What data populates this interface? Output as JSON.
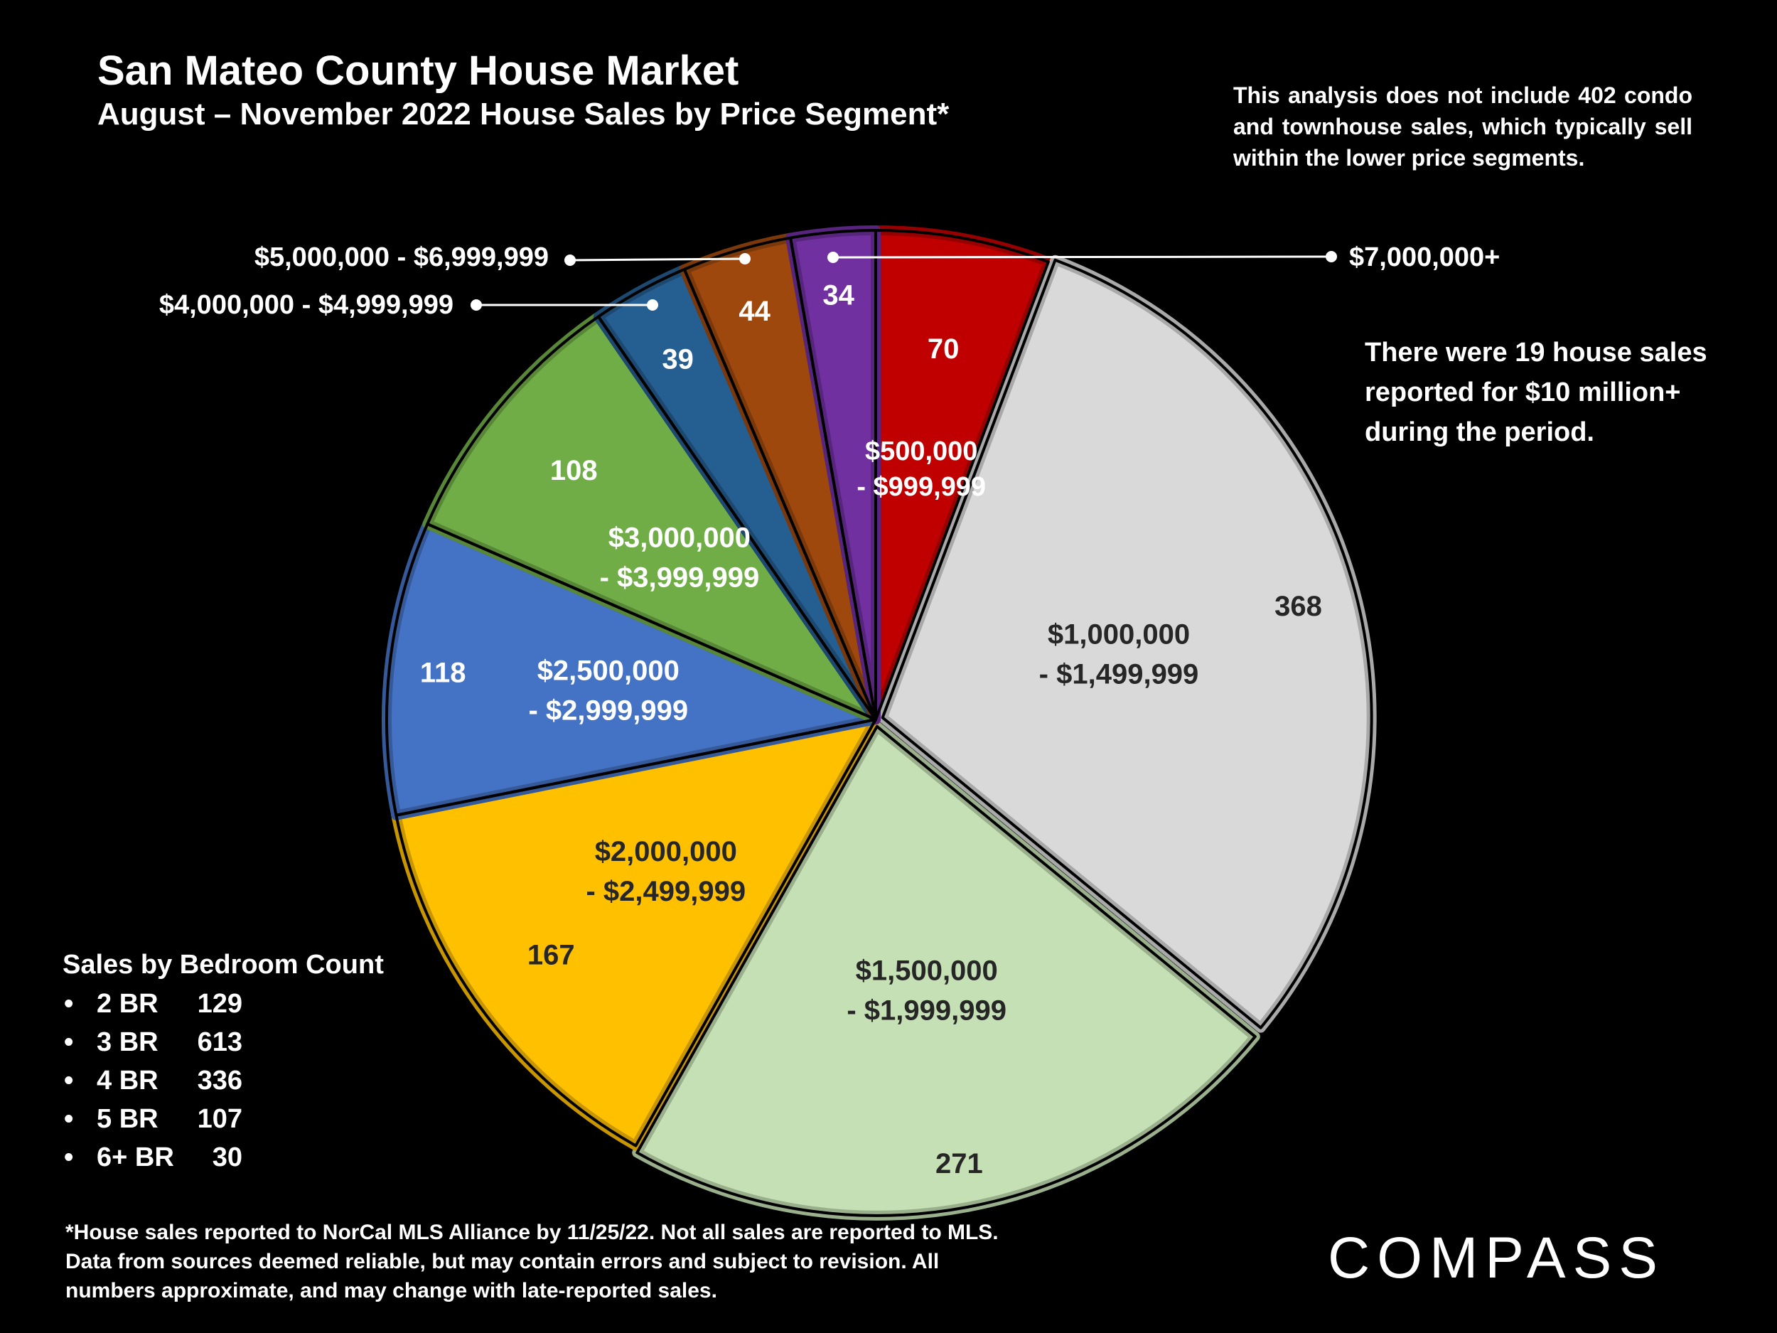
{
  "chart_data": {
    "type": "pie",
    "title": "San Mateo County House Market",
    "subtitle": "August – November 2022 House Sales by Price Segment*",
    "slices": [
      {
        "label": "$500,000 - $999,999",
        "label_lines": [
          "$500,000",
          "- $999,999"
        ],
        "value": 70,
        "color": "#C00000"
      },
      {
        "label": "$1,000,000 - $1,499,999",
        "label_lines": [
          "$1,000,000",
          "- $1,499,999"
        ],
        "value": 368,
        "color": "#D9D9D9"
      },
      {
        "label": "$1,500,000 - $1,999,999",
        "label_lines": [
          "$1,500,000",
          "- $1,999,999"
        ],
        "value": 271,
        "color": "#C5E0B4"
      },
      {
        "label": "$2,000,000 - $2,499,999",
        "label_lines": [
          "$2,000,000",
          "- $2,499,999"
        ],
        "value": 167,
        "color": "#FFC000"
      },
      {
        "label": "$2,500,000 - $2,999,999",
        "label_lines": [
          "$2,500,000",
          "- $2,999,999"
        ],
        "value": 118,
        "color": "#4472C4"
      },
      {
        "label": "$3,000,000 - $3,999,999",
        "label_lines": [
          "$3,000,000",
          "- $3,999,999"
        ],
        "value": 108,
        "color": "#70AD47"
      },
      {
        "label": "$4,000,000 - $4,999,999",
        "label_lines": [
          "$4,000,000 - $4,999,999"
        ],
        "value": 39,
        "color": "#255E91"
      },
      {
        "label": "$5,000,000 - $6,999,999",
        "label_lines": [
          "$5,000,000 - $6,999,999"
        ],
        "value": 44,
        "color": "#9E480E"
      },
      {
        "label": "$7,000,000+",
        "label_lines": [
          "$7,000,000+"
        ],
        "value": 34,
        "color": "#7030A0"
      }
    ],
    "legend": "none"
  },
  "note": "This analysis does not include 402 condo and townhouse sales, which typically sell within the lower price segments.",
  "note2": "There were 19 house sales reported for $10 million+ during the period.",
  "bedroom": {
    "title": "Sales by Bedroom Count",
    "rows": [
      {
        "label": "2 BR",
        "value": "129"
      },
      {
        "label": "3 BR",
        "value": "613"
      },
      {
        "label": "4 BR",
        "value": "336"
      },
      {
        "label": "5 BR",
        "value": "107"
      },
      {
        "label": "6+ BR",
        "value": "30"
      }
    ]
  },
  "footnote": "*House sales reported to NorCal MLS Alliance by 11/25/22. Not all sales are reported to MLS. Data from sources deemed reliable, but may contain errors and subject to revision. All numbers approximate, and may change with late-reported sales.",
  "logo": "COMPASS"
}
